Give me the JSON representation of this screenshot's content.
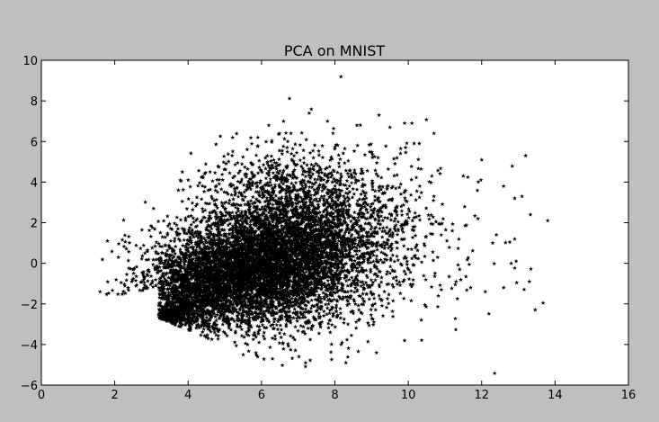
{
  "chart_data": {
    "type": "scatter",
    "title": "PCA on MNIST",
    "xlabel": "",
    "ylabel": "",
    "xlim": [
      0,
      16
    ],
    "ylim": [
      -6,
      10
    ],
    "x_ticks": [
      0,
      2,
      4,
      6,
      8,
      10,
      12,
      14,
      16
    ],
    "y_ticks": [
      -6,
      -4,
      -2,
      0,
      2,
      4,
      6,
      8,
      10
    ],
    "grid": false,
    "legend": "none",
    "marker": "star",
    "colors": {
      "marker": "#000000",
      "plot_bg": "#ffffff",
      "figure_bg": "#bfbfbf"
    },
    "series": [
      {
        "density_regions": [
          {
            "cx": 5.9,
            "cy": -0.2,
            "sx": 1.35,
            "sy": 1.55,
            "rho": 0.25,
            "n": 5200
          },
          {
            "cx": 7.6,
            "cy": 0.9,
            "sx": 1.25,
            "sy": 2.0,
            "rho": 0.15,
            "n": 1700
          },
          {
            "cx": 4.0,
            "cy": -1.4,
            "sx": 0.9,
            "sy": 1.35,
            "rho": 0.45,
            "n": 1300
          },
          {
            "cx": 3.3,
            "cy": -2.65,
            "sx": 0.55,
            "sy": 0.4,
            "rho": 0.55,
            "n": 650
          },
          {
            "cx": 6.6,
            "cy": 3.8,
            "sx": 1.1,
            "sy": 1.1,
            "rho": 0.0,
            "n": 500
          },
          {
            "cx": 9.6,
            "cy": 1.2,
            "sx": 1.0,
            "sy": 2.3,
            "rho": 0.0,
            "n": 160
          },
          {
            "cx": 11.8,
            "cy": 1.2,
            "sx": 1.0,
            "sy": 2.0,
            "rho": 0.0,
            "n": 35
          }
        ],
        "points": [
          [
            1.6,
            -1.4
          ],
          [
            1.8,
            1.1
          ],
          [
            2.1,
            0.3
          ],
          [
            2.9,
            -0.6
          ],
          [
            3.3,
            1.3
          ],
          [
            4.0,
            4.1
          ],
          [
            4.6,
            4.5
          ],
          [
            5.2,
            5.3
          ],
          [
            5.9,
            6.2
          ],
          [
            6.2,
            6.8
          ],
          [
            6.6,
            7.0
          ],
          [
            7.3,
            7.4
          ],
          [
            7.8,
            7.0
          ],
          [
            8.6,
            6.8
          ],
          [
            9.2,
            7.3
          ],
          [
            9.9,
            6.9
          ],
          [
            10.1,
            6.9
          ],
          [
            10.7,
            6.4
          ],
          [
            10.3,
            5.9
          ],
          [
            9.5,
            6.7
          ],
          [
            9.9,
            -3.8
          ],
          [
            8.3,
            -4.9
          ],
          [
            7.2,
            -4.9
          ],
          [
            6.3,
            -4.7
          ],
          [
            5.5,
            -4.5
          ],
          [
            10.8,
            0.3
          ],
          [
            11.2,
            1.6
          ],
          [
            11.9,
            2.2
          ],
          [
            12.0,
            5.1
          ],
          [
            11.5,
            4.3
          ],
          [
            12.1,
            -1.4
          ],
          [
            11.7,
            -1.2
          ],
          [
            12.3,
            1.0
          ],
          [
            12.6,
            3.8
          ],
          [
            12.4,
            1.4
          ],
          [
            12.6,
            -1.2
          ],
          [
            12.9,
            3.2
          ],
          [
            13.1,
            3.3
          ],
          [
            12.9,
            1.2
          ],
          [
            13.2,
            5.3
          ],
          [
            13.3,
            -0.9
          ],
          [
            13.8,
            2.1
          ],
          [
            10.7,
            3.3
          ],
          [
            11.4,
            -0.3
          ],
          [
            10.9,
            -1.3
          ]
        ]
      }
    ]
  }
}
